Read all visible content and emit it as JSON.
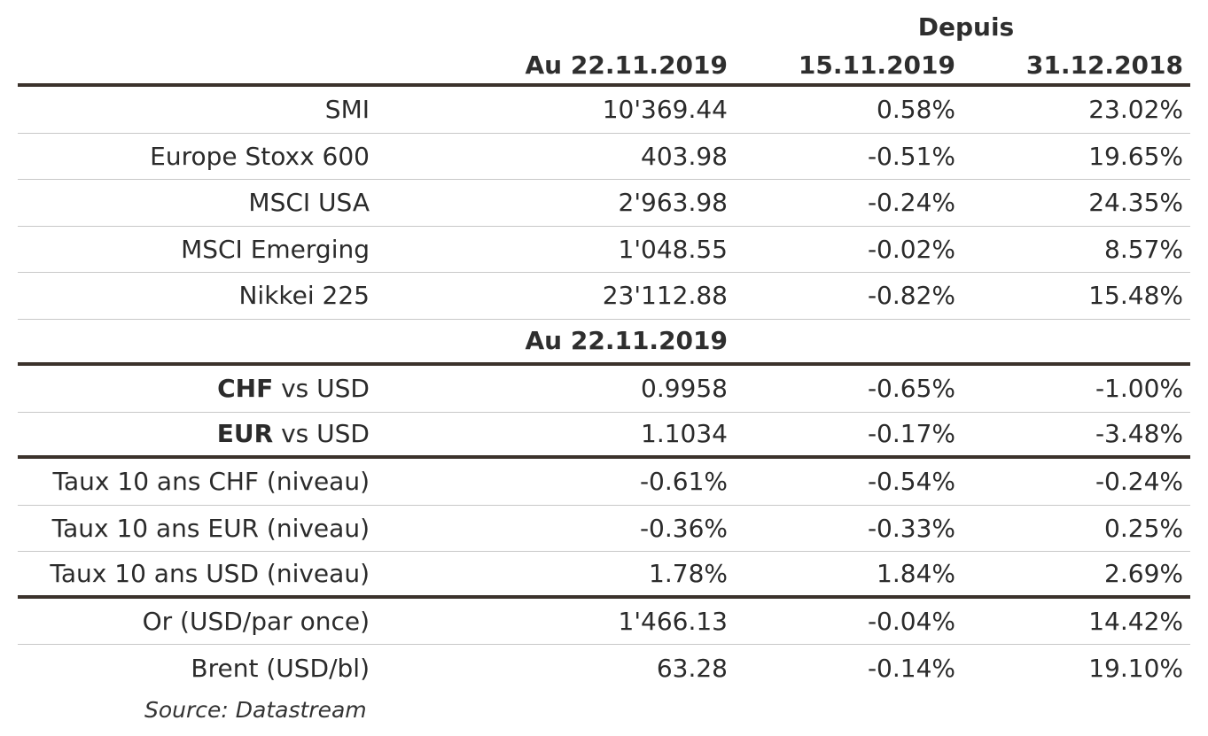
{
  "header": {
    "group_label": "Depuis",
    "col_value": "Au 22.11.2019",
    "col_week": "15.11.2019",
    "col_ytd": "31.12.2018"
  },
  "equities": [
    {
      "label": "SMI",
      "value": "10'369.44",
      "week": "0.58%",
      "ytd": "23.02%"
    },
    {
      "label": "Europe Stoxx 600",
      "value": "403.98",
      "week": "-0.51%",
      "ytd": "19.65%"
    },
    {
      "label": "MSCI USA",
      "value": "2'963.98",
      "week": "-0.24%",
      "ytd": "24.35%"
    },
    {
      "label": "MSCI Emerging",
      "value": "1'048.55",
      "week": "-0.02%",
      "ytd": "8.57%"
    },
    {
      "label": "Nikkei 225",
      "value": "23'112.88",
      "week": "-0.82%",
      "ytd": "15.48%"
    }
  ],
  "subheader": {
    "col_value": "Au 22.11.2019"
  },
  "fx": [
    {
      "code": "CHF",
      "suffix": " vs USD",
      "value": "0.9958",
      "week": "-0.65%",
      "ytd": "-1.00%"
    },
    {
      "code": "EUR",
      "suffix": " vs USD",
      "value": "1.1034",
      "week": "-0.17%",
      "ytd": "-3.48%"
    }
  ],
  "rates": [
    {
      "label": "Taux 10 ans CHF (niveau)",
      "value": "-0.61%",
      "week": "-0.54%",
      "ytd": "-0.24%"
    },
    {
      "label": "Taux 10 ans EUR (niveau)",
      "value": "-0.36%",
      "week": "-0.33%",
      "ytd": "0.25%"
    },
    {
      "label": "Taux 10 ans USD (niveau)",
      "value": "1.78%",
      "week": "1.84%",
      "ytd": "2.69%"
    }
  ],
  "commodities": [
    {
      "label": "Or (USD/par once)",
      "value": "1'466.13",
      "week": "-0.04%",
      "ytd": "14.42%"
    },
    {
      "label": "Brent (USD/bl)",
      "value": "63.28",
      "week": "-0.14%",
      "ytd": "19.10%"
    }
  ],
  "source": "Source: Datastream"
}
